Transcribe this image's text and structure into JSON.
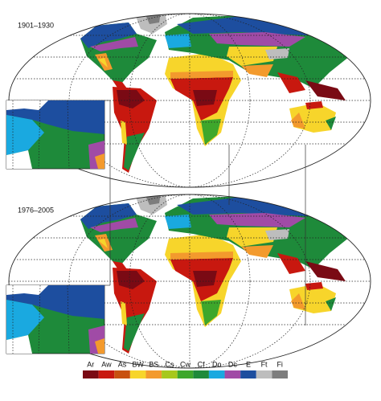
{
  "maps": [
    {
      "label": "1901–1930"
    },
    {
      "label": "1976–2005"
    }
  ],
  "legend": {
    "items": [
      {
        "name": "Ar",
        "color": "#7a0a14"
      },
      {
        "name": "Aw",
        "color": "#c8180f"
      },
      {
        "name": "As",
        "color": "#c8500f"
      },
      {
        "name": "BW",
        "color": "#f7d52b"
      },
      {
        "name": "BS",
        "color": "#f39a2d"
      },
      {
        "name": "Cs",
        "color": "#a7c81c"
      },
      {
        "name": "Cw",
        "color": "#3ea72b"
      },
      {
        "name": "Cf",
        "color": "#1e8a3a"
      },
      {
        "name": "Do",
        "color": "#1aa9e0"
      },
      {
        "name": "Dc",
        "color": "#a04ba6"
      },
      {
        "name": "E",
        "color": "#1d4e9f"
      },
      {
        "name": "Ft",
        "color": "#bdbdbd"
      },
      {
        "name": "Fi",
        "color": "#7d7d7d"
      }
    ]
  }
}
